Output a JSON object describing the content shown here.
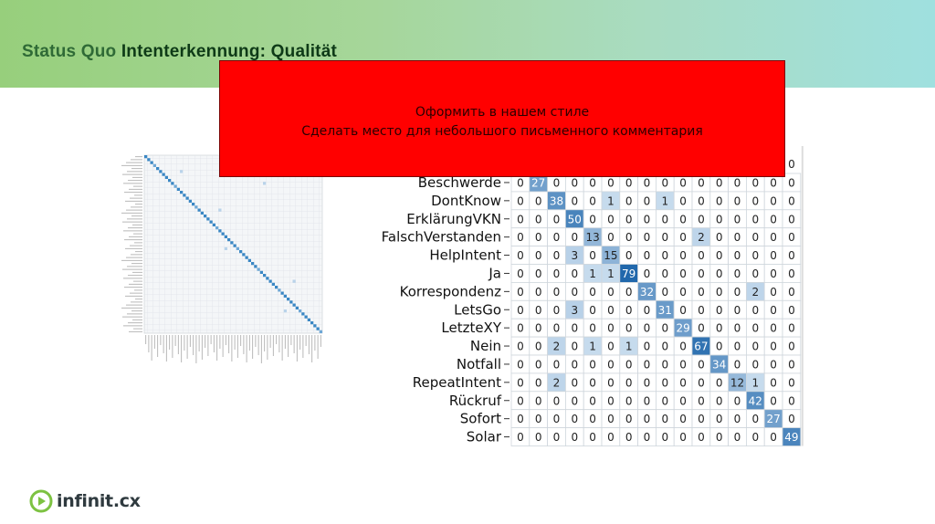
{
  "header": {
    "title_part1": "Status Quo ",
    "title_part2": "Intenterkennung: Qualität"
  },
  "note": {
    "line1": "Оформить в нашем стиле",
    "line2": "Сделать место для небольшого письменного комментария"
  },
  "logo": {
    "text": "infinit.cx",
    "color": "#7dc242"
  },
  "colors": {
    "header_start": "#97cf7c",
    "header_end": "#9fe0df",
    "note_bg": "#ff0000",
    "cell_high": "#3a87c4",
    "cell_low": "#d6e6f4"
  },
  "chart_data": [
    {
      "type": "heatmap",
      "title": "",
      "labels_visible": [
        "Beschwerde",
        "DontKnow",
        "ErklärungVKN",
        "FalschVerstanden",
        "HelpIntent",
        "Ja",
        "Korrespondenz",
        "LetsGo",
        "LetzteXY",
        "Nein",
        "Notfall",
        "RepeatIntent",
        "Rückruf",
        "Sofort",
        "Solar"
      ],
      "top_row_partial": [
        "0"
      ],
      "matrix": [
        [
          0,
          27,
          0,
          0,
          0,
          0,
          0,
          0,
          0,
          0,
          0,
          0,
          0,
          0,
          0,
          0
        ],
        [
          0,
          0,
          38,
          0,
          0,
          1,
          0,
          0,
          1,
          0,
          0,
          0,
          0,
          0,
          0,
          0
        ],
        [
          0,
          0,
          0,
          50,
          0,
          0,
          0,
          0,
          0,
          0,
          0,
          0,
          0,
          0,
          0,
          0
        ],
        [
          0,
          0,
          0,
          0,
          13,
          0,
          0,
          0,
          0,
          0,
          2,
          0,
          0,
          0,
          0,
          0
        ],
        [
          0,
          0,
          0,
          3,
          0,
          15,
          0,
          0,
          0,
          0,
          0,
          0,
          0,
          0,
          0,
          0
        ],
        [
          0,
          0,
          0,
          0,
          1,
          1,
          79,
          0,
          0,
          0,
          0,
          0,
          0,
          0,
          0,
          0
        ],
        [
          0,
          0,
          0,
          0,
          0,
          0,
          0,
          32,
          0,
          0,
          0,
          0,
          0,
          2,
          0,
          0
        ],
        [
          0,
          0,
          0,
          3,
          0,
          0,
          0,
          0,
          31,
          0,
          0,
          0,
          0,
          0,
          0,
          0
        ],
        [
          0,
          0,
          0,
          0,
          0,
          0,
          0,
          0,
          0,
          29,
          0,
          0,
          0,
          0,
          0,
          0
        ],
        [
          0,
          0,
          2,
          0,
          1,
          0,
          1,
          0,
          0,
          0,
          67,
          0,
          0,
          0,
          0,
          0
        ],
        [
          0,
          0,
          0,
          0,
          0,
          0,
          0,
          0,
          0,
          0,
          0,
          34,
          0,
          0,
          0,
          0
        ],
        [
          0,
          0,
          2,
          0,
          0,
          0,
          0,
          0,
          0,
          0,
          0,
          0,
          12,
          1,
          0,
          0
        ],
        [
          0,
          0,
          0,
          0,
          0,
          0,
          0,
          0,
          0,
          0,
          0,
          0,
          0,
          42,
          0,
          0
        ],
        [
          0,
          0,
          0,
          0,
          0,
          0,
          0,
          0,
          0,
          0,
          0,
          0,
          0,
          0,
          27,
          0
        ],
        [
          0,
          0,
          0,
          0,
          0,
          0,
          0,
          0,
          0,
          0,
          0,
          0,
          0,
          0,
          0,
          49
        ]
      ]
    },
    {
      "type": "heatmap",
      "description": "full confusion matrix thumbnail, strong diagonal",
      "size": 60
    }
  ]
}
